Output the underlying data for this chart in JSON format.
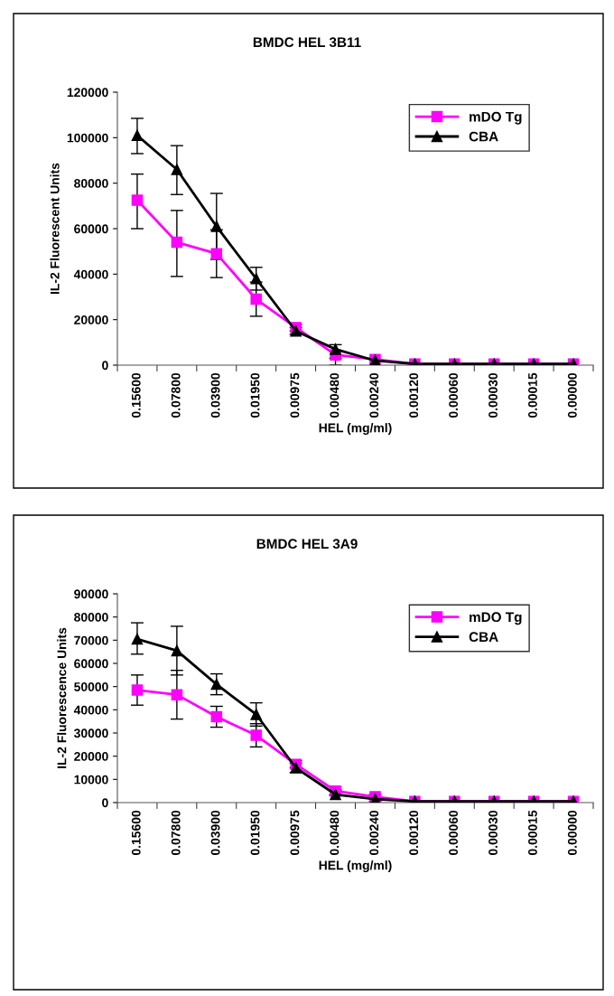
{
  "chart_data": [
    {
      "type": "line",
      "title": "BMDC HEL 3B11",
      "xlabel": "HEL (mg/ml)",
      "ylabel": "IL-2 Fluorescent Units",
      "categories": [
        "0.15600",
        "0.07800",
        "0.03900",
        "0.01950",
        "0.00975",
        "0.00480",
        "0.00240",
        "0.00120",
        "0.00060",
        "0.00030",
        "0.00015",
        "0.00000"
      ],
      "series": [
        {
          "name": "mDO Tg",
          "color": "#ff00ff",
          "marker": "square",
          "values": [
            72500,
            54000,
            49000,
            29000,
            16500,
            4500,
            2500,
            500,
            500,
            500,
            500,
            500
          ],
          "errors": [
            [
              60000,
              84000
            ],
            [
              39000,
              68000
            ],
            [
              38500,
              59500
            ],
            [
              21500,
              36500
            ],
            [
              15000,
              18000
            ],
            [
              3000,
              6000
            ],
            null,
            null,
            null,
            null,
            null,
            null
          ]
        },
        {
          "name": "CBA",
          "color": "#000000",
          "marker": "triangle",
          "values": [
            101000,
            86000,
            61000,
            38000,
            15000,
            7000,
            2000,
            500,
            500,
            500,
            500,
            500
          ],
          "errors": [
            [
              93000,
              108500
            ],
            [
              75000,
              96500
            ],
            [
              46500,
              75500
            ],
            [
              33000,
              43000
            ],
            [
              13500,
              16500
            ],
            [
              0,
              9000
            ],
            null,
            null,
            null,
            null,
            null,
            null
          ]
        }
      ],
      "ylim": [
        0,
        120000
      ],
      "yticks": [
        0,
        20000,
        40000,
        60000,
        80000,
        100000,
        120000
      ],
      "grid": false,
      "legend": "top right",
      "line_style": "solid"
    },
    {
      "type": "line",
      "title": "BMDC HEL 3A9",
      "xlabel": "HEL (mg/ml)",
      "ylabel": "IL-2 Fluorescence Units",
      "categories": [
        "0.15600",
        "0.07800",
        "0.03900",
        "0.01950",
        "0.00975",
        "0.00480",
        "0.00240",
        "0.00120",
        "0.00060",
        "0.00030",
        "0.00015",
        "0.00000"
      ],
      "series": [
        {
          "name": "mDO Tg",
          "color": "#ff00ff",
          "marker": "square",
          "values": [
            48500,
            46500,
            37000,
            29000,
            16500,
            5000,
            2500,
            500,
            500,
            500,
            500,
            500
          ],
          "errors": [
            [
              42000,
              55000
            ],
            [
              36000,
              57000
            ],
            [
              32500,
              41500
            ],
            [
              24000,
              34000
            ],
            [
              15000,
              18000
            ],
            [
              3500,
              5500
            ],
            [
              1500,
              3500
            ],
            null,
            null,
            null,
            null,
            null
          ]
        },
        {
          "name": "CBA",
          "color": "#000000",
          "marker": "triangle",
          "values": [
            70500,
            65500,
            51000,
            38000,
            15000,
            3500,
            1500,
            500,
            500,
            500,
            500,
            500
          ],
          "errors": [
            [
              64000,
              77500
            ],
            [
              55000,
              76000
            ],
            [
              46500,
              55500
            ],
            [
              33000,
              43000
            ],
            [
              13000,
              17000
            ],
            [
              3000,
              5000
            ],
            [
              500,
              2500
            ],
            null,
            null,
            null,
            null,
            null
          ]
        }
      ],
      "ylim": [
        0,
        90000
      ],
      "yticks": [
        0,
        10000,
        20000,
        30000,
        40000,
        50000,
        60000,
        70000,
        80000,
        90000
      ],
      "grid": false,
      "legend": "top right",
      "line_style": "solid"
    }
  ]
}
